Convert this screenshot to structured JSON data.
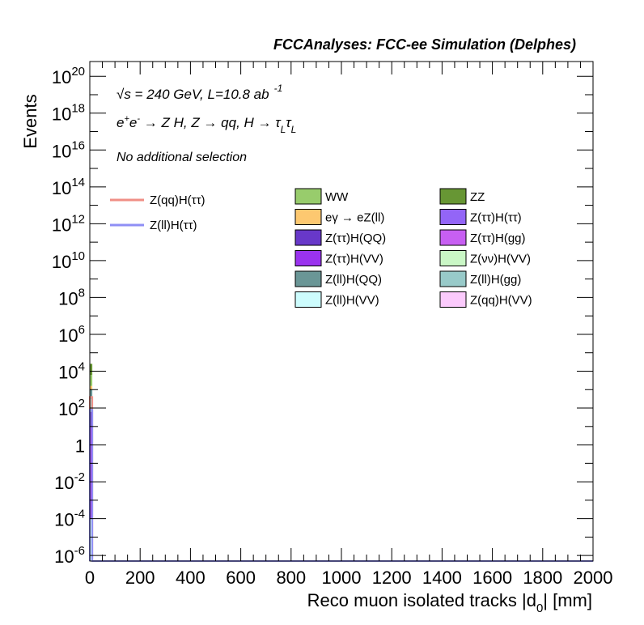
{
  "chart_data": {
    "type": "bar",
    "title": "FCCAnalyses: FCC-ee Simulation (Delphes)",
    "xlabel": "Reco muon isolated tracks |d0| [mm]",
    "xlabel_main": "Reco muon isolated tracks |d",
    "xlabel_sub": "0",
    "xlabel_end": "| [mm]",
    "ylabel": "Events",
    "xlim": [
      0,
      2000
    ],
    "ylim_log10": [
      -6.3,
      20.8
    ],
    "y_scale": "log",
    "x_ticks": [
      "0",
      "200",
      "400",
      "600",
      "800",
      "1000",
      "1200",
      "1400",
      "1600",
      "1800",
      "2000"
    ],
    "y_ticks": [
      {
        "log": -6,
        "base": "10",
        "exp": "-6"
      },
      {
        "log": -4,
        "base": "10",
        "exp": "-4"
      },
      {
        "log": -2,
        "base": "10",
        "exp": "-2"
      },
      {
        "log": 0,
        "base": "1",
        "exp": ""
      },
      {
        "log": 2,
        "base": "10",
        "exp": "2"
      },
      {
        "log": 4,
        "base": "10",
        "exp": "4"
      },
      {
        "log": 6,
        "base": "10",
        "exp": "6"
      },
      {
        "log": 8,
        "base": "10",
        "exp": "8"
      },
      {
        "log": 10,
        "base": "10",
        "exp": "10"
      },
      {
        "log": 12,
        "base": "10",
        "exp": "12"
      },
      {
        "log": 14,
        "base": "10",
        "exp": "14"
      },
      {
        "log": 16,
        "base": "10",
        "exp": "16"
      },
      {
        "log": 18,
        "base": "10",
        "exp": "18"
      },
      {
        "log": 20,
        "base": "10",
        "exp": "20"
      }
    ],
    "annotations": {
      "energy_prefix": "√s = 240 GeV, L=10.8 ab",
      "energy_exp": "-1",
      "process": "e⁺e⁻ → Z H, Z → qq, H → τ_L τ_L",
      "selection": "No additional selection"
    },
    "stack_bins": [
      {
        "x_range": [
          0,
          10
        ],
        "segments": [
          {
            "name": "Z(ll)H(VV)",
            "y_low_log10": -6.3,
            "y_high_log10": -4.0
          },
          {
            "name": "Z(ττ)H(VV)",
            "y_low_log10": -4.0,
            "y_high_log10": 1.0
          },
          {
            "name": "Z(ττ)H(QQ)",
            "y_low_log10": 1.0,
            "y_high_log10": 1.8
          },
          {
            "name": "Z(ll)H(gg)",
            "y_low_log10": 1.8,
            "y_high_log10": 2.5
          },
          {
            "name": "Z(ll)H(QQ)",
            "y_low_log10": 2.5,
            "y_high_log10": 3.0
          },
          {
            "name": "eγ → eZ(ll)",
            "y_low_log10": 3.0,
            "y_high_log10": 3.2
          },
          {
            "name": "WW",
            "y_low_log10": 3.2,
            "y_high_log10": 3.8
          },
          {
            "name": "ZZ",
            "y_low_log10": 3.8,
            "y_high_log10": 4.4
          }
        ]
      }
    ],
    "signal_lines": [
      {
        "name": "Z(qq)H(ττ)",
        "color": "#f08f86",
        "x_range": [
          0,
          10
        ],
        "y_log10": 2.6
      },
      {
        "name": "Z(ll)H(ττ)",
        "color": "#8f8ff5",
        "x_range": [
          0,
          10
        ],
        "y_log10": 1.9
      }
    ],
    "signal_legend": [
      {
        "label": "Z(qq)H(ττ)",
        "color": "#f08f86"
      },
      {
        "label": "Z(ll)H(ττ)",
        "color": "#8f8ff5"
      }
    ],
    "background_legend": [
      {
        "label": "WW",
        "color": "#98cc6c"
      },
      {
        "label": "ZZ",
        "color": "#679634"
      },
      {
        "label": "eγ → eZ(ll)",
        "color": "#fdc870"
      },
      {
        "label": "Z(ττ)H(ττ)",
        "color": "#9365f7"
      },
      {
        "label": "Z(ττ)H(QQ)",
        "color": "#6838c9"
      },
      {
        "label": "Z(ττ)H(gg)",
        "color": "#c75ff2"
      },
      {
        "label": "Z(ττ)H(VV)",
        "color": "#9a33ee"
      },
      {
        "label": "Z(νν)H(VV)",
        "color": "#caf7c6"
      },
      {
        "label": "Z(ll)H(QQ)",
        "color": "#6a9696"
      },
      {
        "label": "Z(ll)H(gg)",
        "color": "#98cac9"
      },
      {
        "label": "Z(ll)H(VV)",
        "color": "#cdfcfd"
      },
      {
        "label": "Z(qq)H(VV)",
        "color": "#fbcafc"
      }
    ]
  }
}
